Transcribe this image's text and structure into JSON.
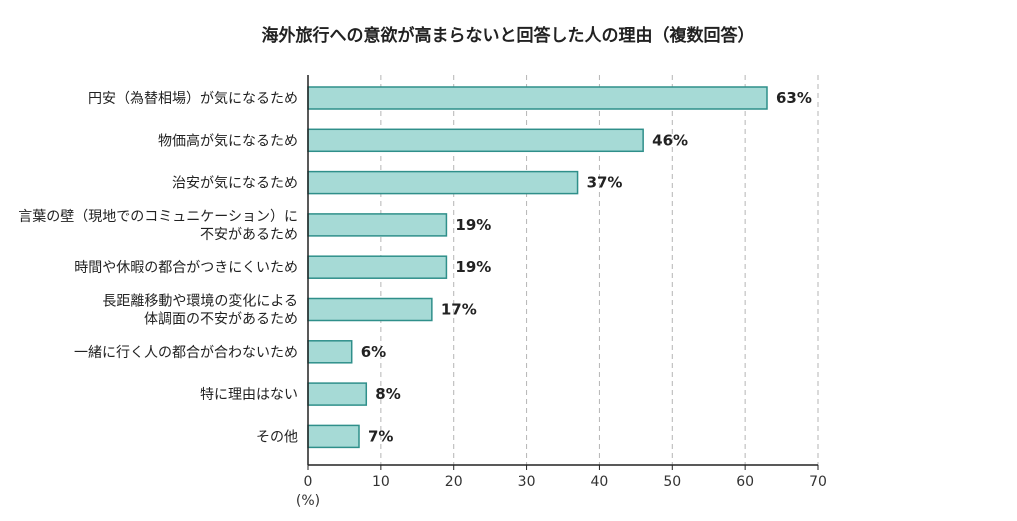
{
  "chart_data": {
    "type": "bar",
    "orientation": "horizontal",
    "title": "海外旅行への意欲が高まらないと回答した人の理由（複数回答）",
    "categories": [
      [
        "円安（為替相場）が気になるため"
      ],
      [
        "物価高が気になるため"
      ],
      [
        "治安が気になるため"
      ],
      [
        "言葉の壁（現地でのコミュニケーション）に",
        "不安があるため"
      ],
      [
        "時間や休暇の都合がつきにくいため"
      ],
      [
        "長距離移動や環境の変化による",
        "体調面の不安があるため"
      ],
      [
        "一緒に行く人の都合が合わないため"
      ],
      [
        "特に理由はない"
      ],
      [
        "その他"
      ]
    ],
    "values": [
      63,
      46,
      37,
      19,
      19,
      17,
      6,
      8,
      7
    ],
    "value_labels": [
      "63%",
      "46%",
      "37%",
      "19%",
      "19%",
      "17%",
      "6%",
      "8%",
      "7%"
    ],
    "xlim": [
      0,
      70
    ],
    "xticks": [
      0,
      10,
      20,
      30,
      40,
      50,
      60,
      70
    ],
    "xlabel": "(%)",
    "grid": "vertical dashed",
    "colors": {
      "bar_fill": "#a6dad6",
      "bar_stroke": "#2f8f8a",
      "grid": "#b5b5b5",
      "axis": "#222222"
    }
  }
}
